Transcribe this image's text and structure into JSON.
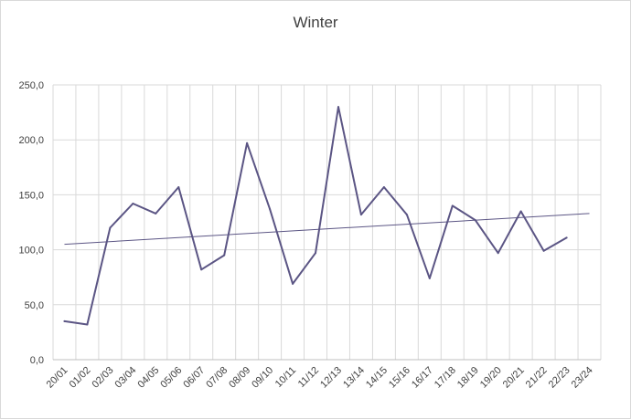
{
  "chart_data": {
    "type": "line",
    "title": "Winter",
    "xlabel": "",
    "ylabel": "",
    "ylim": [
      0,
      250
    ],
    "yticks": [
      "0,0",
      "50,0",
      "100,0",
      "150,0",
      "200,0",
      "250,0"
    ],
    "grid": true,
    "legend": "none",
    "categories": [
      "20/01",
      "01/02",
      "02/03",
      "03/04",
      "04/05",
      "05/06",
      "06/07",
      "07/08",
      "08/09",
      "09/10",
      "10/11",
      "11/12",
      "12/13",
      "13/14",
      "14/15",
      "15/16",
      "16/17",
      "17/18",
      "18/19",
      "19/20",
      "20/21",
      "21/22",
      "22/23",
      "23/24"
    ],
    "series": [
      {
        "values": [
          35,
          32,
          120,
          142,
          133,
          157,
          82,
          95,
          197,
          137,
          69,
          97,
          230,
          132,
          157,
          132,
          74,
          140,
          127,
          97,
          135,
          99,
          111,
          null
        ],
        "color": "#5b5584"
      }
    ],
    "trendline": {
      "start": 105,
      "end": 133,
      "color": "#5b5584"
    }
  }
}
